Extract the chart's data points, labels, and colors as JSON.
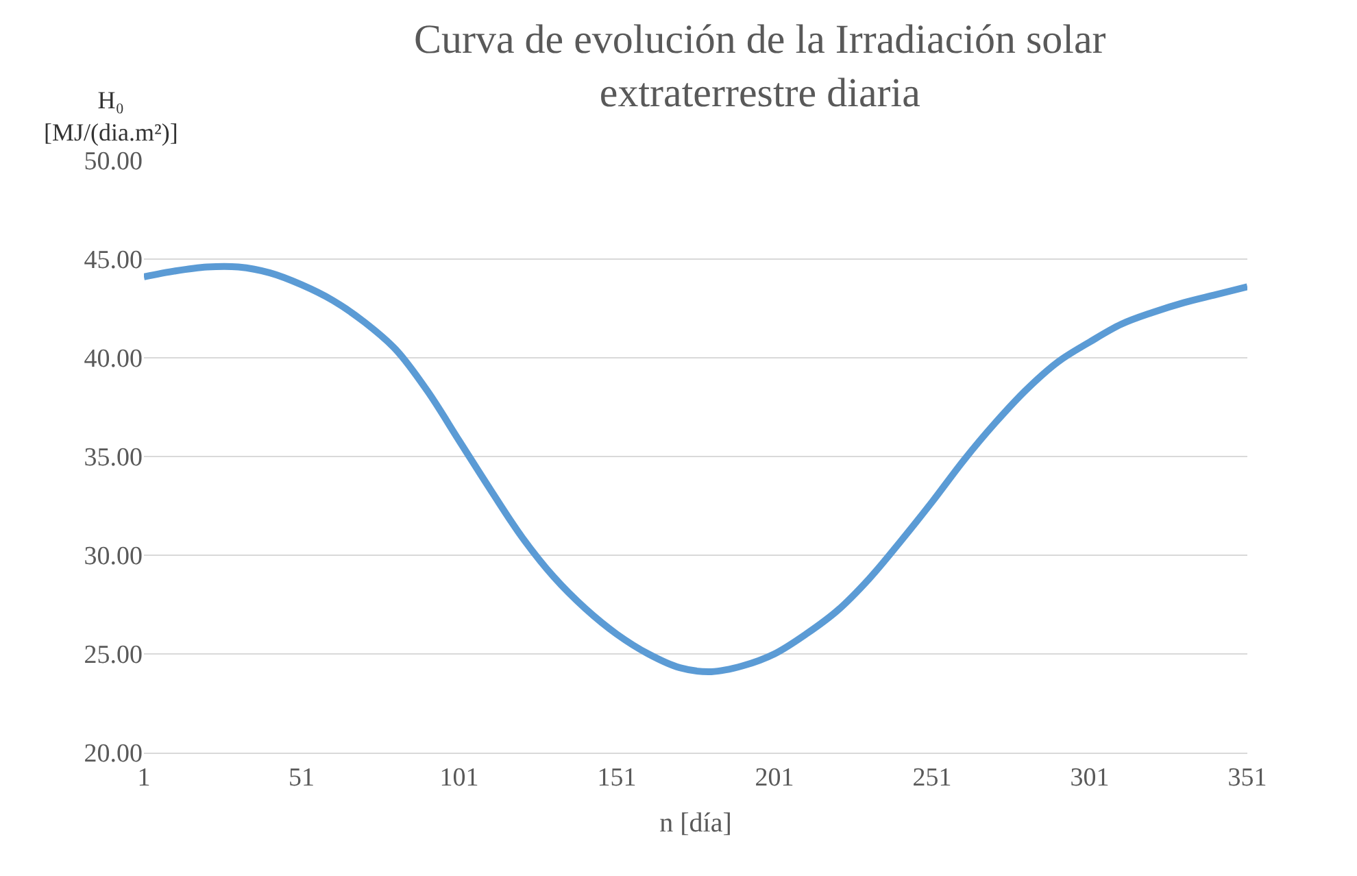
{
  "chart_data": {
    "type": "line",
    "title": "Curva de evolución de la Irradiación solar\nextraterrestre diaria",
    "xlabel": "n [día]",
    "ylabel": "H₀\n[MJ/(dia.m²)]",
    "x": [
      1,
      11,
      21,
      31,
      41,
      51,
      61,
      71,
      81,
      91,
      101,
      111,
      121,
      131,
      141,
      151,
      161,
      171,
      181,
      191,
      201,
      211,
      221,
      231,
      241,
      251,
      261,
      271,
      281,
      291,
      301,
      311,
      321,
      331,
      341,
      351
    ],
    "series": [
      {
        "color": "#5b9bd5",
        "values": [
          44.1,
          44.4,
          44.6,
          44.6,
          44.3,
          43.7,
          42.9,
          41.8,
          40.4,
          38.3,
          35.8,
          33.3,
          30.9,
          28.9,
          27.3,
          26.0,
          25.0,
          24.3,
          24.1,
          24.4,
          25.0,
          26.0,
          27.2,
          28.8,
          30.7,
          32.7,
          34.8,
          36.7,
          38.4,
          39.8,
          40.8,
          41.7,
          42.3,
          42.8,
          43.2,
          43.6
        ]
      }
    ],
    "xlim": [
      1,
      351
    ],
    "xticks": [
      1,
      51,
      101,
      151,
      201,
      251,
      301,
      351
    ],
    "ylim": [
      20,
      50
    ],
    "yticks": [
      {
        "value": 20,
        "label": "20.00"
      },
      {
        "value": 25,
        "label": "25.00"
      },
      {
        "value": 30,
        "label": "30.00"
      },
      {
        "value": 35,
        "label": "35.00"
      },
      {
        "value": 40,
        "label": "40.00"
      },
      {
        "value": 45,
        "label": "45.00"
      },
      {
        "value": 50,
        "label": "50.00"
      }
    ],
    "grid": "y",
    "marker": "none",
    "line_style": "solid"
  }
}
